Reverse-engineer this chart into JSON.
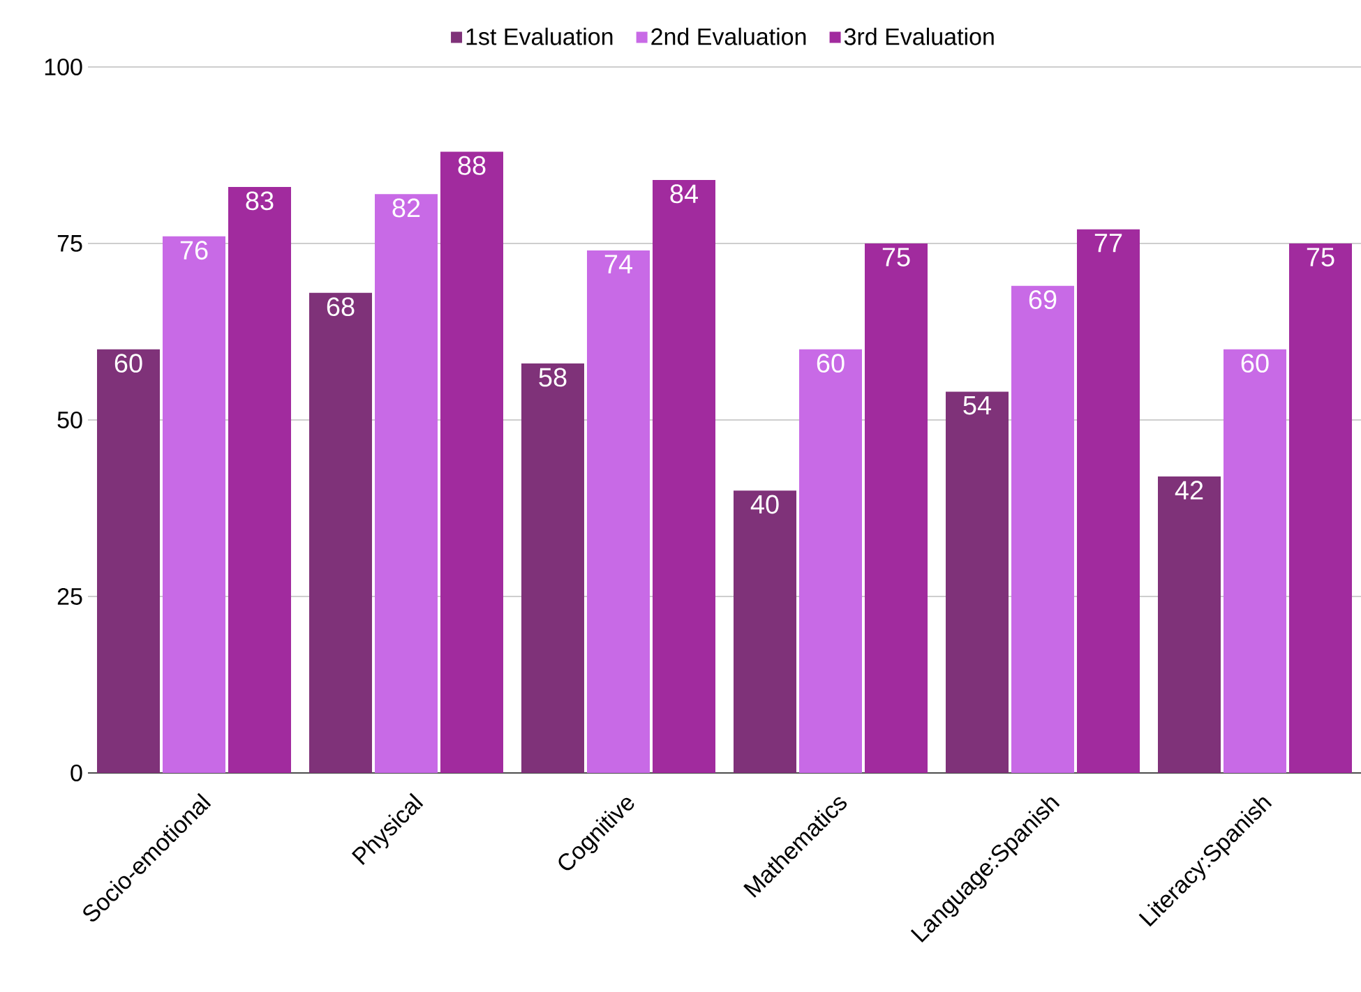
{
  "chart_data": {
    "type": "bar",
    "categories": [
      "Socio-emotional",
      "Physical",
      "Cognitive",
      "Mathematics",
      "Language:Spanish",
      "Literacy:Spanish"
    ],
    "series": [
      {
        "name": "1st Evaluation",
        "color": "#7f3279",
        "values": [
          60,
          68,
          58,
          40,
          54,
          42
        ]
      },
      {
        "name": "2nd Evaluation",
        "color": "#c86ae6",
        "values": [
          76,
          82,
          74,
          60,
          69,
          60
        ]
      },
      {
        "name": "3rd Evaluation",
        "color": "#a12b9e",
        "values": [
          83,
          88,
          84,
          75,
          77,
          75
        ]
      }
    ],
    "ylim": [
      0,
      100
    ],
    "yticks": [
      0,
      25,
      50,
      75,
      100
    ],
    "grid": "y",
    "legend": "top",
    "data_labels": true
  }
}
